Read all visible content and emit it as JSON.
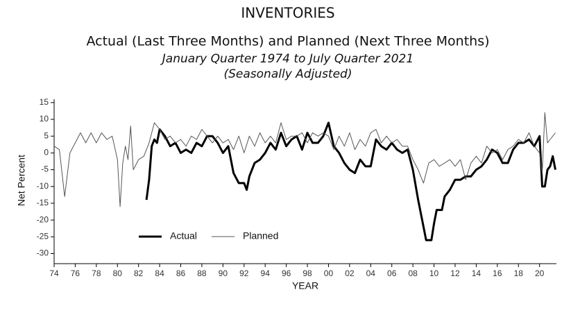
{
  "chart_data": {
    "type": "line",
    "title": "INVENTORIES",
    "subtitle": "Actual (Last Three Months) and Planned (Next Three Months)",
    "subtitle2": "January Quarter 1974 to July Quarter 2021",
    "subtitle3": "(Seasonally Adjusted)",
    "x_label": "YEAR",
    "y_label": "Net Percent",
    "xlim": [
      1974,
      2021.6
    ],
    "ylim": [
      -33,
      16
    ],
    "yticks": [
      15,
      10,
      5,
      0,
      -5,
      -10,
      -15,
      -20,
      -25,
      -30
    ],
    "xticks": [
      {
        "value": 1974,
        "label": "74"
      },
      {
        "value": 1976,
        "label": "76"
      },
      {
        "value": 1978,
        "label": "78"
      },
      {
        "value": 1980,
        "label": "80"
      },
      {
        "value": 1982,
        "label": "82"
      },
      {
        "value": 1984,
        "label": "84"
      },
      {
        "value": 1986,
        "label": "86"
      },
      {
        "value": 1988,
        "label": "88"
      },
      {
        "value": 1990,
        "label": "90"
      },
      {
        "value": 1992,
        "label": "92"
      },
      {
        "value": 1994,
        "label": "94"
      },
      {
        "value": 1996,
        "label": "96"
      },
      {
        "value": 1998,
        "label": "98"
      },
      {
        "value": 2000,
        "label": "00"
      },
      {
        "value": 2002,
        "label": "02"
      },
      {
        "value": 2004,
        "label": "04"
      },
      {
        "value": 2006,
        "label": "06"
      },
      {
        "value": 2008,
        "label": "08"
      },
      {
        "value": 2010,
        "label": "10"
      },
      {
        "value": 2012,
        "label": "12"
      },
      {
        "value": 2014,
        "label": "14"
      },
      {
        "value": 2016,
        "label": "16"
      },
      {
        "value": 2018,
        "label": "18"
      },
      {
        "value": 2020,
        "label": "20"
      }
    ],
    "series": [
      {
        "name": "Actual",
        "color": "#000000",
        "width": 3,
        "x": [
          1982.75,
          1983,
          1983.25,
          1983.5,
          1983.75,
          1984,
          1984.5,
          1985,
          1985.5,
          1986,
          1986.5,
          1987,
          1987.5,
          1988,
          1988.5,
          1989,
          1989.5,
          1990,
          1990.5,
          1991,
          1991.5,
          1992,
          1992.25,
          1992.5,
          1993,
          1993.5,
          1994,
          1994.5,
          1995,
          1995.5,
          1996,
          1996.5,
          1997,
          1997.5,
          1998,
          1998.5,
          1999,
          1999.5,
          2000,
          2000.5,
          2001,
          2001.5,
          2002,
          2002.5,
          2003,
          2003.5,
          2004,
          2004.5,
          2005,
          2005.5,
          2006,
          2006.5,
          2007,
          2007.5,
          2008,
          2008.5,
          2009,
          2009.25,
          2009.75,
          2010,
          2010.25,
          2010.75,
          2011,
          2011.5,
          2012,
          2012.5,
          2013,
          2013.5,
          2014,
          2014.5,
          2015,
          2015.5,
          2016,
          2016.5,
          2017,
          2017.5,
          2018,
          2018.5,
          2019,
          2019.5,
          2020,
          2020.25,
          2020.5,
          2020.75,
          2021,
          2021.25,
          2021.5
        ],
        "values": [
          -14,
          -8,
          2,
          4,
          3,
          7,
          5,
          2,
          3,
          0,
          1,
          0,
          3,
          2,
          5,
          5,
          3,
          0,
          2,
          -6,
          -9,
          -9,
          -11,
          -7,
          -3,
          -2,
          0,
          3,
          1,
          6,
          2,
          4,
          5,
          1,
          6,
          3,
          3,
          5,
          9,
          2,
          0,
          -3,
          -5,
          -6,
          -2,
          -4,
          -4,
          4,
          2,
          1,
          3,
          1,
          0,
          1,
          -5,
          -14,
          -22,
          -26,
          -26,
          -21,
          -17,
          -17,
          -13,
          -11,
          -8,
          -8,
          -7,
          -7,
          -5,
          -4,
          -2,
          1,
          0,
          -3,
          -3,
          1,
          3,
          3,
          4,
          2,
          5,
          -10,
          -10,
          -5,
          -4,
          -1,
          -5
        ]
      },
      {
        "name": "Planned",
        "color": "#555555",
        "width": 1,
        "x": [
          1974,
          1974.5,
          1975,
          1975.5,
          1976,
          1976.5,
          1977,
          1977.5,
          1978,
          1978.5,
          1979,
          1979.5,
          1980,
          1980.25,
          1980.5,
          1980.75,
          1981,
          1981.25,
          1981.5,
          1982,
          1982.5,
          1983,
          1983.5,
          1984,
          1984.5,
          1985,
          1985.5,
          1986,
          1986.5,
          1987,
          1987.5,
          1988,
          1988.5,
          1989,
          1989.5,
          1990,
          1990.5,
          1991,
          1991.5,
          1992,
          1992.5,
          1993,
          1993.5,
          1994,
          1994.5,
          1995,
          1995.5,
          1996,
          1996.5,
          1997,
          1997.5,
          1998,
          1998.5,
          1999,
          1999.5,
          2000,
          2000.5,
          2001,
          2001.5,
          2002,
          2002.5,
          2003,
          2003.5,
          2004,
          2004.5,
          2005,
          2005.5,
          2006,
          2006.5,
          2007,
          2007.5,
          2008,
          2008.5,
          2009,
          2009.5,
          2010,
          2010.5,
          2011,
          2011.5,
          2012,
          2012.5,
          2013,
          2013.5,
          2014,
          2014.5,
          2015,
          2015.5,
          2016,
          2016.5,
          2017,
          2017.5,
          2018,
          2018.5,
          2019,
          2019.5,
          2020,
          2020.25,
          2020.5,
          2020.75,
          2021,
          2021.5
        ],
        "values": [
          2,
          1,
          -13,
          0,
          3,
          6,
          3,
          6,
          3,
          6,
          4,
          5,
          -2,
          -16,
          -3,
          2,
          -2,
          8,
          -5,
          -2,
          -1,
          3,
          9,
          7,
          4,
          5,
          3,
          4,
          2,
          5,
          4,
          7,
          5,
          3,
          5,
          3,
          4,
          1,
          5,
          0,
          5,
          2,
          6,
          3,
          5,
          3,
          9,
          4,
          5,
          5,
          6,
          3,
          6,
          5,
          6,
          5,
          1,
          5,
          2,
          6,
          1,
          4,
          2,
          6,
          7,
          3,
          5,
          3,
          4,
          2,
          2,
          -2,
          -5,
          -9,
          -3,
          -2,
          -4,
          -3,
          -2,
          -4,
          -2,
          -8,
          -3,
          -1,
          -3,
          2,
          0,
          1,
          -2,
          1,
          2,
          4,
          3,
          6,
          2,
          0,
          -6,
          12,
          3,
          4,
          6
        ]
      }
    ]
  }
}
